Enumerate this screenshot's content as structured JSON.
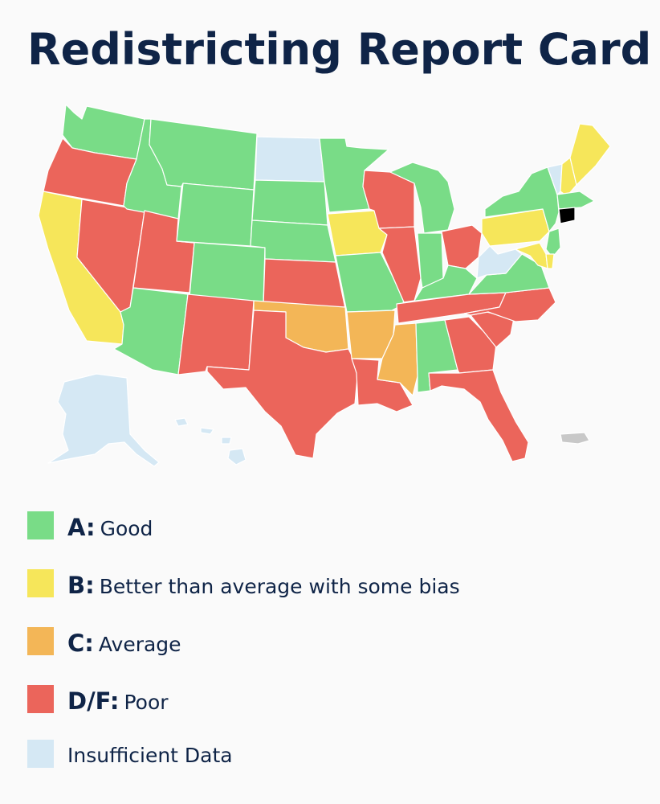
{
  "title": "Redistricting Report Card",
  "colors": {
    "A": "#79dc87",
    "B": "#f6e65a",
    "C": "#f3b657",
    "DF": "#eb655b",
    "insufficient": "#d5e8f4",
    "territory": "#c8c8c8"
  },
  "legend": [
    {
      "key": "A",
      "grade": "A:",
      "label": "Good"
    },
    {
      "key": "B",
      "grade": "B:",
      "label": "Better than average with some bias"
    },
    {
      "key": "C",
      "grade": "C:",
      "label": "Average"
    },
    {
      "key": "DF",
      "grade": "D/F:",
      "label": "Poor"
    },
    {
      "key": "insufficient",
      "grade": "",
      "label": "Insufficient Data"
    }
  ],
  "states": {
    "WA": "A",
    "OR": "DF",
    "CA": "B",
    "NV": "DF",
    "ID": "A",
    "MT": "A",
    "WY": "A",
    "UT": "DF",
    "AZ": "A",
    "CO": "A",
    "NM": "DF",
    "ND": "insufficient",
    "SD": "A",
    "NE": "A",
    "KS": "DF",
    "OK": "C",
    "TX": "DF",
    "MN": "A",
    "IA": "B",
    "MO": "A",
    "AR": "C",
    "LA": "DF",
    "WI": "DF",
    "IL": "DF",
    "MI": "A",
    "IN": "A",
    "OH": "DF",
    "KY": "A",
    "TN": "DF",
    "MS": "C",
    "AL": "A",
    "GA": "DF",
    "FL": "DF",
    "SC": "DF",
    "NC": "DF",
    "VA": "A",
    "WV": "insufficient",
    "PA": "B",
    "NY": "A",
    "VT": "insufficient",
    "NH": "B",
    "ME": "B",
    "MA": "A",
    "NJ": "A",
    "MD": "B",
    "DE": "B",
    "AK": "insufficient",
    "HI": "insufficient",
    "PR": "territory"
  }
}
